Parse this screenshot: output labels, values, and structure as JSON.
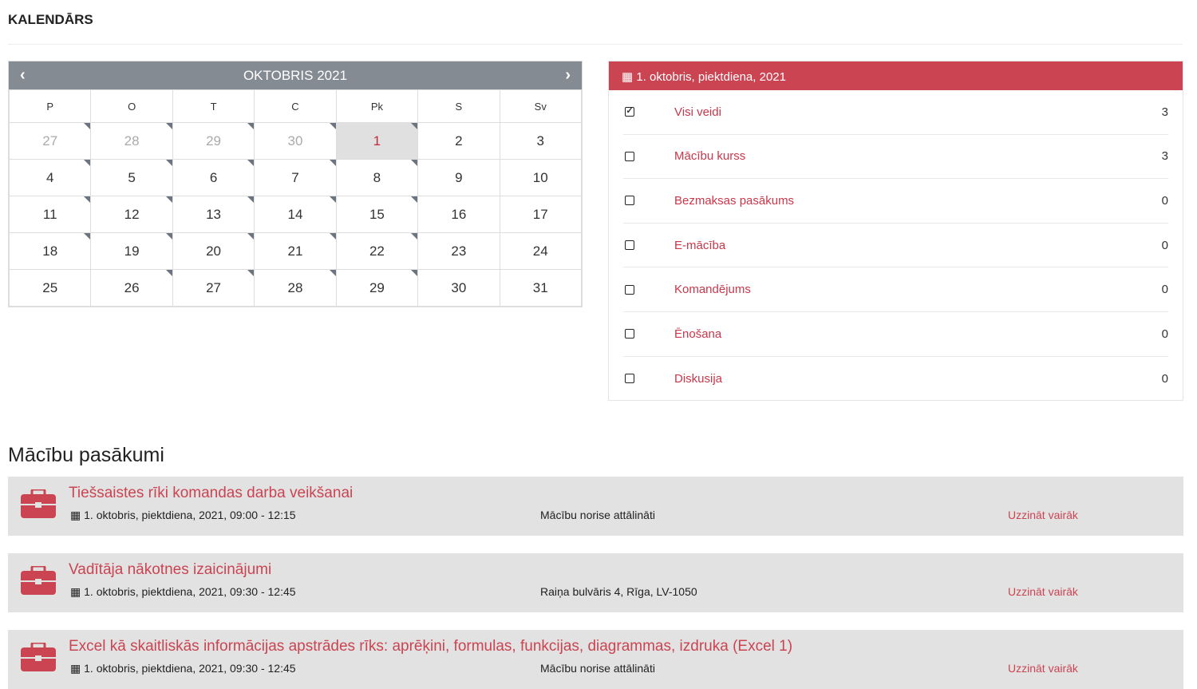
{
  "page": {
    "title": "KALENDĀRS",
    "accent": "#cb4452"
  },
  "calendar": {
    "month": "OKTOBRIS 2021",
    "prev": "‹",
    "next": "›",
    "weekdays": [
      "P",
      "O",
      "T",
      "C",
      "Pk",
      "S",
      "Sv"
    ],
    "weeks": [
      [
        "27",
        "28",
        "29",
        "30",
        "1",
        "2",
        "3"
      ],
      [
        "4",
        "5",
        "6",
        "7",
        "8",
        "9",
        "10"
      ],
      [
        "11",
        "12",
        "13",
        "14",
        "15",
        "16",
        "17"
      ],
      [
        "18",
        "19",
        "20",
        "21",
        "22",
        "23",
        "24"
      ],
      [
        "25",
        "26",
        "27",
        "28",
        "29",
        "30",
        "31"
      ]
    ],
    "selected": "1"
  },
  "filters": {
    "header": "1. oktobris, piektdiena, 2021",
    "items": [
      {
        "label": "Visi veidi",
        "count": "3",
        "checked": true
      },
      {
        "label": "Mācību kurss",
        "count": "3",
        "checked": false
      },
      {
        "label": "Bezmaksas pasākums",
        "count": "0",
        "checked": false
      },
      {
        "label": "E-mācība",
        "count": "0",
        "checked": false
      },
      {
        "label": "Komandējums",
        "count": "0",
        "checked": false
      },
      {
        "label": "Ēnošana",
        "count": "0",
        "checked": false
      },
      {
        "label": "Diskusija",
        "count": "0",
        "checked": false
      }
    ]
  },
  "events": {
    "title": "Mācību pasākumi",
    "items": [
      {
        "title": "Tiešsaistes rīki komandas darba veikšanai",
        "date": "1. oktobris, piektdiena, 2021, 09:00 - 12:15",
        "location": "Mācību norise attālināti",
        "more": "Uzzināt vairāk"
      },
      {
        "title": "Vadītāja nākotnes izaicinājumi",
        "date": "1. oktobris, piektdiena, 2021, 09:30 - 12:45",
        "location": "Raiņa bulvāris 4, Rīga, LV-1050",
        "more": "Uzzināt vairāk"
      },
      {
        "title": "Excel kā skaitliskās informācijas apstrādes rīks: aprēķini, formulas, funkcijas, diagrammas, izdruka (Excel 1)",
        "date": "1. oktobris, piektdiena, 2021, 09:30 - 12:45",
        "location": "Mācību norise attālināti",
        "more": "Uzzināt vairāk"
      }
    ]
  }
}
